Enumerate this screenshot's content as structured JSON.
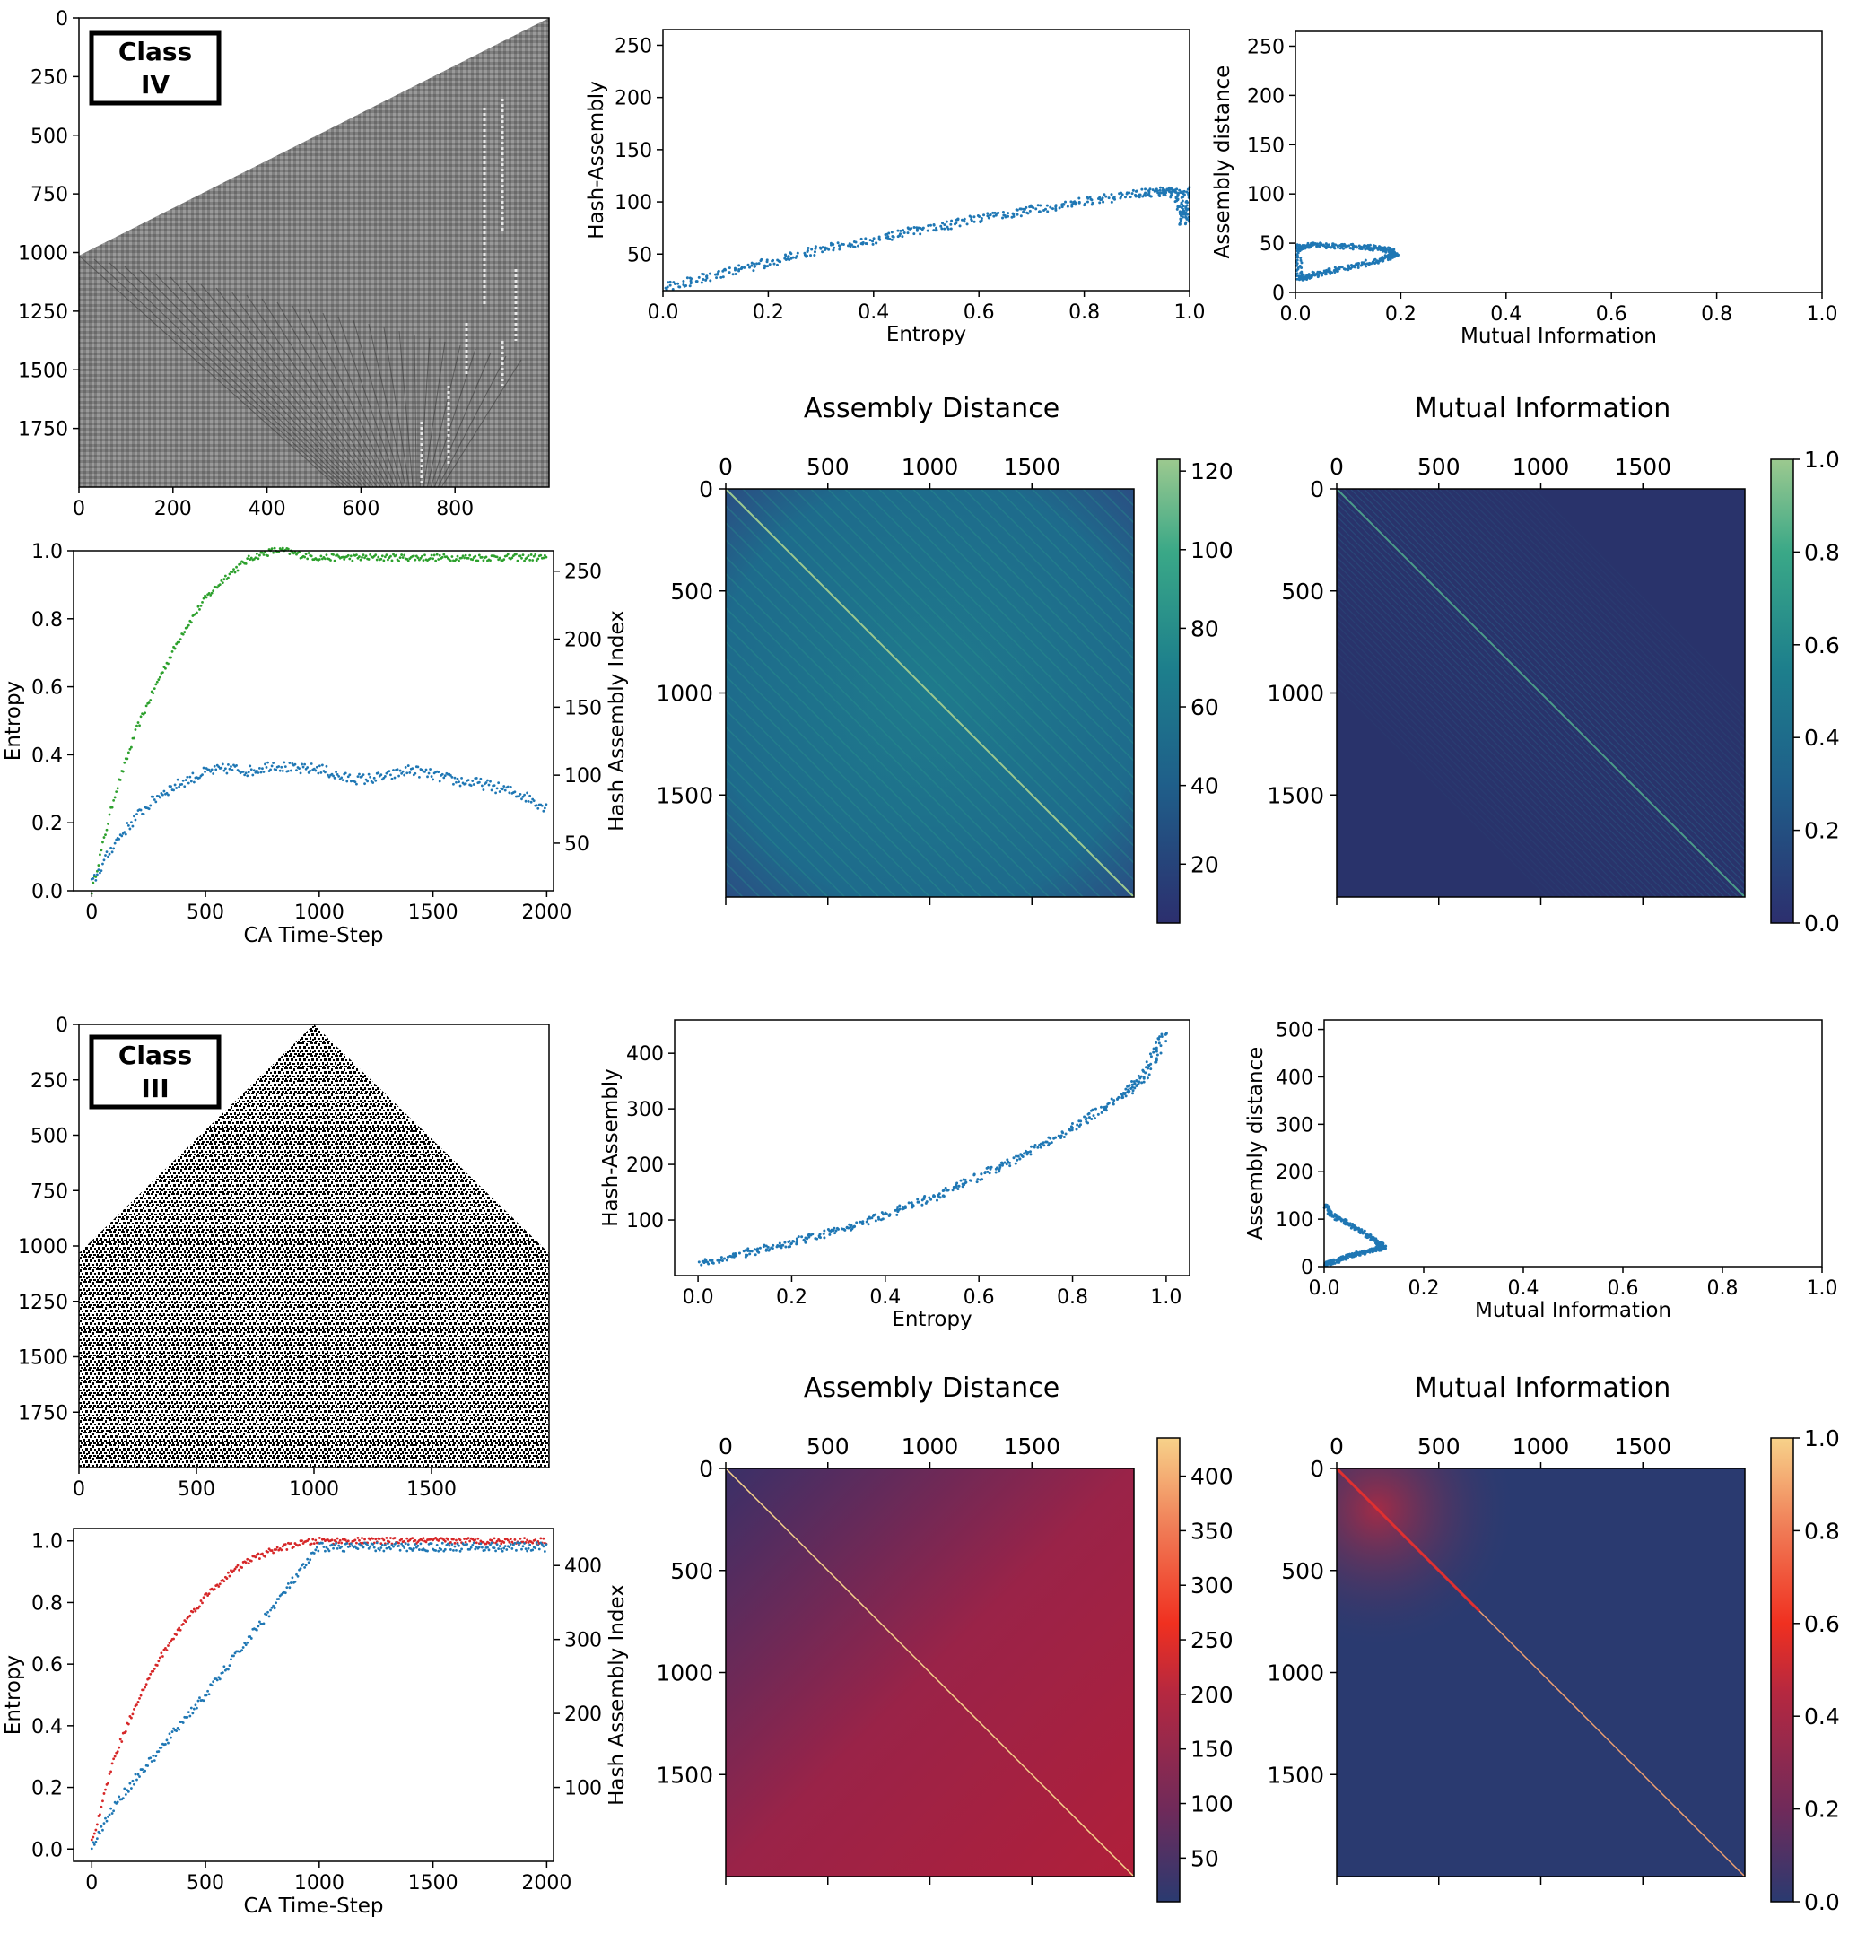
{
  "colors": {
    "blue": "#1f77b4",
    "green": "#2ca02c",
    "red": "#d62728",
    "ca4_gray": "#8c8c8c",
    "heat_bg_iv": "#29336b",
    "viridis_scale": [
      "#2c2f6e",
      "#1f5f8a",
      "#1d7f8c",
      "#3aa887",
      "#9cc98f"
    ],
    "heat_scale_iii": [
      "#2a3a70",
      "#702a5a",
      "#b52840",
      "#f03020",
      "#f07a55",
      "#f7d28a"
    ]
  },
  "chart_data": [
    {
      "id": "ca_class_iv",
      "type": "heatmap",
      "label_box": [
        "Class",
        "IV"
      ],
      "xticks": [
        "0",
        "200",
        "400",
        "600",
        "800"
      ],
      "yticks": [
        "0",
        "250",
        "500",
        "750",
        "1000",
        "1250",
        "1500",
        "1750"
      ],
      "xlim": [
        0,
        1000
      ],
      "ylim": [
        2000,
        0
      ]
    },
    {
      "id": "entropy_hash_iv",
      "type": "line",
      "xlabel": "CA Time-Step",
      "ylabel": "Entropy",
      "y2label": "Hash Assembly Index",
      "xticks": [
        "0",
        "500",
        "1000",
        "1500",
        "2000"
      ],
      "yticks": [
        "0.0",
        "0.2",
        "0.4",
        "0.6",
        "0.8",
        "1.0"
      ],
      "y2ticks": [
        "50",
        "100",
        "150",
        "200",
        "250"
      ],
      "xlim": [
        -80,
        2030
      ],
      "ylim": [
        0,
        1
      ],
      "y2lim": [
        15,
        265
      ],
      "series": [
        {
          "x": [
            0,
            100,
            200,
            300,
            400,
            500,
            600,
            700,
            800,
            850,
            900,
            1000,
            1200,
            1500,
            1800,
            2000
          ],
          "values": [
            0.0,
            0.28,
            0.48,
            0.63,
            0.76,
            0.86,
            0.93,
            0.98,
            1.0,
            1.0,
            0.99,
            0.98,
            0.98,
            0.98,
            0.98,
            0.98
          ]
        },
        {
          "x": [
            0,
            100,
            200,
            300,
            400,
            500,
            600,
            700,
            800,
            900,
            1000,
            1100,
            1200,
            1300,
            1400,
            1500,
            1600,
            1700,
            1800,
            1900,
            2000
          ],
          "values": [
            20,
            50,
            70,
            86,
            95,
            102,
            105,
            103,
            108,
            104,
            105,
            98,
            97,
            99,
            104,
            100,
            96,
            94,
            90,
            85,
            76
          ]
        }
      ]
    },
    {
      "id": "scatter_entropy_hash_iv",
      "type": "scatter",
      "xlabel": "Entropy",
      "ylabel": "Hash-Assembly",
      "xticks": [
        "0.0",
        "0.2",
        "0.4",
        "0.6",
        "0.8",
        "1.0"
      ],
      "yticks": [
        "50",
        "100",
        "150",
        "200",
        "250"
      ],
      "xlim": [
        0,
        1
      ],
      "ylim": [
        15,
        265
      ],
      "x": [
        0.0,
        0.1,
        0.2,
        0.3,
        0.4,
        0.5,
        0.6,
        0.7,
        0.8,
        0.9,
        0.95,
        0.98,
        0.99,
        1.0
      ],
      "values": [
        18,
        30,
        42,
        54,
        64,
        74,
        84,
        92,
        100,
        108,
        110,
        108,
        80,
        115
      ]
    },
    {
      "id": "scatter_mi_assembly_iv",
      "type": "scatter",
      "xlabel": "Mutual Information",
      "ylabel": "Assembly distance",
      "xticks": [
        "0.0",
        "0.2",
        "0.4",
        "0.6",
        "0.8",
        "1.0"
      ],
      "yticks": [
        "0",
        "50",
        "100",
        "150",
        "200",
        "250"
      ],
      "xlim": [
        0,
        1
      ],
      "ylim": [
        0,
        265
      ],
      "x": [
        0.0,
        0.03,
        0.08,
        0.13,
        0.17,
        0.19,
        0.17,
        0.12,
        0.07,
        0.03,
        0.01,
        0.0
      ],
      "values": [
        45,
        48,
        47,
        46,
        44,
        40,
        34,
        28,
        22,
        17,
        14,
        50
      ]
    },
    {
      "id": "heat_assembly_iv",
      "type": "heatmap",
      "title": "Assembly Distance",
      "xticks": [
        "0",
        "500",
        "1000",
        "1500"
      ],
      "yticks": [
        "0",
        "500",
        "1000",
        "1500"
      ],
      "xlim": [
        0,
        2000
      ],
      "ylim": [
        2000,
        0
      ],
      "colorbar_ticks": [
        "20",
        "40",
        "60",
        "80",
        "100",
        "120"
      ],
      "colorbar_range": [
        5,
        123
      ]
    },
    {
      "id": "heat_mi_iv",
      "type": "heatmap",
      "title": "Mutual Information",
      "xticks": [
        "0",
        "500",
        "1000",
        "1500"
      ],
      "yticks": [
        "0",
        "500",
        "1000",
        "1500"
      ],
      "xlim": [
        0,
        2000
      ],
      "ylim": [
        2000,
        0
      ],
      "colorbar_ticks": [
        "0.0",
        "0.2",
        "0.4",
        "0.6",
        "0.8",
        "1.0"
      ],
      "colorbar_range": [
        0,
        1
      ]
    },
    {
      "id": "ca_class_iii",
      "type": "heatmap",
      "label_box": [
        "Class",
        "III"
      ],
      "xticks": [
        "0",
        "500",
        "1000",
        "1500"
      ],
      "yticks": [
        "0",
        "250",
        "500",
        "750",
        "1000",
        "1250",
        "1500",
        "1750"
      ],
      "xlim": [
        0,
        2000
      ],
      "ylim": [
        2000,
        0
      ]
    },
    {
      "id": "entropy_hash_iii",
      "type": "line",
      "xlabel": "CA Time-Step",
      "ylabel": "Entropy",
      "y2label": "Hash Assembly Index",
      "xticks": [
        "0",
        "500",
        "1000",
        "1500",
        "2000"
      ],
      "yticks": [
        "0.0",
        "0.2",
        "0.4",
        "0.6",
        "0.8",
        "1.0"
      ],
      "y2ticks": [
        "100",
        "200",
        "300",
        "400"
      ],
      "xlim": [
        -80,
        2030
      ],
      "ylim": [
        -0.04,
        1.04
      ],
      "y2lim": [
        0,
        450
      ],
      "series": [
        {
          "x": [
            0,
            100,
            200,
            300,
            400,
            500,
            600,
            700,
            800,
            900,
            1000,
            1500,
            2000
          ],
          "values": [
            0.02,
            0.3,
            0.48,
            0.62,
            0.73,
            0.82,
            0.89,
            0.94,
            0.97,
            0.99,
            1.0,
            1.0,
            1.0
          ]
        },
        {
          "x": [
            0,
            100,
            200,
            300,
            400,
            500,
            600,
            700,
            800,
            900,
            1000,
            1500,
            2000
          ],
          "values": [
            20,
            75,
            115,
            150,
            190,
            225,
            265,
            305,
            345,
            385,
            425,
            425,
            425
          ]
        }
      ]
    },
    {
      "id": "scatter_entropy_hash_iii",
      "type": "scatter",
      "xlabel": "Entropy",
      "ylabel": "Hash-Assembly",
      "xticks": [
        "0.0",
        "0.2",
        "0.4",
        "0.6",
        "0.8",
        "1.0"
      ],
      "yticks": [
        "100",
        "200",
        "300",
        "400"
      ],
      "xlim": [
        -0.05,
        1.05
      ],
      "ylim": [
        0,
        460
      ],
      "x": [
        0.0,
        0.1,
        0.2,
        0.3,
        0.4,
        0.5,
        0.6,
        0.7,
        0.8,
        0.9,
        0.95,
        1.0
      ],
      "values": [
        20,
        40,
        60,
        82,
        110,
        140,
        178,
        220,
        265,
        320,
        355,
        440
      ]
    },
    {
      "id": "scatter_mi_assembly_iii",
      "type": "scatter",
      "xlabel": "Mutual Information",
      "ylabel": "Assembly distance",
      "xticks": [
        "0.0",
        "0.2",
        "0.4",
        "0.6",
        "0.8",
        "1.0"
      ],
      "yticks": [
        "0",
        "100",
        "200",
        "300",
        "400",
        "500"
      ],
      "xlim": [
        0,
        1
      ],
      "ylim": [
        0,
        520
      ],
      "x": [
        0.0,
        0.02,
        0.05,
        0.08,
        0.11,
        0.12,
        0.1,
        0.07,
        0.04,
        0.02,
        0.0
      ],
      "values": [
        130,
        105,
        90,
        70,
        50,
        40,
        35,
        28,
        18,
        10,
        5
      ]
    },
    {
      "id": "heat_assembly_iii",
      "type": "heatmap",
      "title": "Assembly Distance",
      "xticks": [
        "0",
        "500",
        "1000",
        "1500"
      ],
      "yticks": [
        "0",
        "500",
        "1000",
        "1500"
      ],
      "xlim": [
        0,
        2000
      ],
      "ylim": [
        2000,
        0
      ],
      "colorbar_ticks": [
        "50",
        "100",
        "150",
        "200",
        "250",
        "300",
        "350",
        "400"
      ],
      "colorbar_range": [
        10,
        435
      ]
    },
    {
      "id": "heat_mi_iii",
      "type": "heatmap",
      "title": "Mutual Information",
      "xticks": [
        "0",
        "500",
        "1000",
        "1500"
      ],
      "yticks": [
        "0",
        "500",
        "1000",
        "1500"
      ],
      "xlim": [
        0,
        2000
      ],
      "ylim": [
        2000,
        0
      ],
      "colorbar_ticks": [
        "0.0",
        "0.2",
        "0.4",
        "0.6",
        "0.8",
        "1.0"
      ],
      "colorbar_range": [
        0,
        1
      ]
    }
  ]
}
